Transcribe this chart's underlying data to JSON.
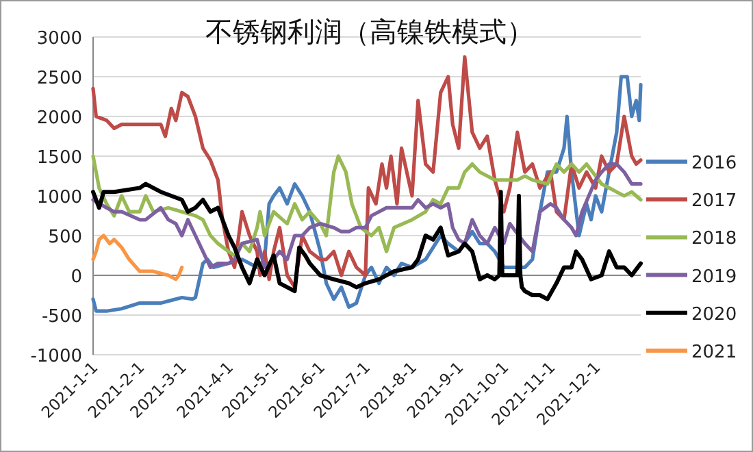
{
  "chart_data": {
    "type": "line",
    "title": "不锈钢利润（高镍铁模式）",
    "xlim": [
      "2021-01-01",
      "2021-12-31"
    ],
    "xticks": [
      {
        "value": "2021-01-01",
        "label": "2021-1-1"
      },
      {
        "value": "2021-02-01",
        "label": "2021-2-1"
      },
      {
        "value": "2021-03-01",
        "label": "2021-3-1"
      },
      {
        "value": "2021-04-01",
        "label": "2021-4-1"
      },
      {
        "value": "2021-05-01",
        "label": "2021-5-1"
      },
      {
        "value": "2021-06-01",
        "label": "2021-6-1"
      },
      {
        "value": "2021-07-01",
        "label": "2021-7-1"
      },
      {
        "value": "2021-08-01",
        "label": "2021-8-1"
      },
      {
        "value": "2021-09-01",
        "label": "2021-9-1"
      },
      {
        "value": "2021-10-01",
        "label": "2021-10-1"
      },
      {
        "value": "2021-11-01",
        "label": "2021-11-1"
      },
      {
        "value": "2021-12-01",
        "label": "2021-12-1"
      }
    ],
    "ylim": [
      -1000,
      3000
    ],
    "yticks": [
      -1000,
      -500,
      0,
      500,
      1000,
      1500,
      2000,
      2500,
      3000
    ],
    "grid": "y",
    "legend": "right",
    "marker": "none",
    "line_style": "solid",
    "series": [
      {
        "name": "2016",
        "color": "#4a7ebb",
        "x": [
          "2021-01-01",
          "2021-01-03",
          "2021-01-10",
          "2021-01-20",
          "2021-02-01",
          "2021-02-15",
          "2021-02-25",
          "2021-03-01",
          "2021-03-08",
          "2021-03-10",
          "2021-03-15",
          "2021-03-18",
          "2021-03-22",
          "2021-04-01",
          "2021-04-10",
          "2021-04-20",
          "2021-04-25",
          "2021-04-28",
          "2021-05-01",
          "2021-05-05",
          "2021-05-10",
          "2021-05-15",
          "2021-05-20",
          "2021-05-25",
          "2021-06-01",
          "2021-06-05",
          "2021-06-10",
          "2021-06-15",
          "2021-06-20",
          "2021-06-25",
          "2021-07-01",
          "2021-07-05",
          "2021-07-10",
          "2021-07-15",
          "2021-07-20",
          "2021-07-25",
          "2021-08-01",
          "2021-08-10",
          "2021-08-15",
          "2021-08-20",
          "2021-08-25",
          "2021-09-01",
          "2021-09-10",
          "2021-09-15",
          "2021-09-20",
          "2021-09-25",
          "2021-10-01",
          "2021-10-10",
          "2021-10-15",
          "2021-10-20",
          "2021-10-25",
          "2021-10-30",
          "2021-11-05",
          "2021-11-10",
          "2021-11-12",
          "2021-11-15",
          "2021-11-20",
          "2021-11-25",
          "2021-11-28",
          "2021-12-01",
          "2021-12-05",
          "2021-12-10",
          "2021-12-15",
          "2021-12-18",
          "2021-12-22",
          "2021-12-25",
          "2021-12-28",
          "2021-12-30",
          "2021-12-31"
        ],
        "values": [
          -300,
          -450,
          -450,
          -420,
          -350,
          -350,
          -300,
          -280,
          -300,
          -280,
          150,
          200,
          100,
          150,
          200,
          100,
          200,
          900,
          1000,
          1100,
          900,
          1150,
          1000,
          800,
          300,
          -100,
          -300,
          -150,
          -400,
          -350,
          0,
          100,
          -100,
          100,
          0,
          150,
          100,
          200,
          350,
          500,
          400,
          300,
          550,
          400,
          400,
          300,
          100,
          100,
          100,
          200,
          800,
          1300,
          1300,
          1600,
          2000,
          1300,
          500,
          900,
          700,
          1000,
          800,
          1300,
          1800,
          2500,
          2500,
          2000,
          2200,
          1950,
          2400
        ]
      },
      {
        "name": "2017",
        "color": "#be4b48",
        "x": [
          "2021-01-01",
          "2021-01-03",
          "2021-01-10",
          "2021-01-15",
          "2021-01-20",
          "2021-02-01",
          "2021-02-15",
          "2021-02-18",
          "2021-02-22",
          "2021-02-25",
          "2021-03-01",
          "2021-03-05",
          "2021-03-10",
          "2021-03-15",
          "2021-03-20",
          "2021-03-25",
          "2021-03-28",
          "2021-04-01",
          "2021-04-05",
          "2021-04-10",
          "2021-04-15",
          "2021-04-20",
          "2021-04-22",
          "2021-04-25",
          "2021-04-28",
          "2021-05-01",
          "2021-05-05",
          "2021-05-10",
          "2021-05-15",
          "2021-05-20",
          "2021-05-25",
          "2021-06-01",
          "2021-06-05",
          "2021-06-10",
          "2021-06-15",
          "2021-06-20",
          "2021-06-25",
          "2021-07-01",
          "2021-07-03",
          "2021-07-08",
          "2021-07-12",
          "2021-07-15",
          "2021-07-18",
          "2021-07-22",
          "2021-07-25",
          "2021-08-01",
          "2021-08-05",
          "2021-08-10",
          "2021-08-15",
          "2021-08-20",
          "2021-08-25",
          "2021-08-28",
          "2021-09-01",
          "2021-09-05",
          "2021-09-10",
          "2021-09-15",
          "2021-09-20",
          "2021-09-25",
          "2021-10-01",
          "2021-10-05",
          "2021-10-10",
          "2021-10-15",
          "2021-10-20",
          "2021-10-25",
          "2021-11-01",
          "2021-11-05",
          "2021-11-10",
          "2021-11-15",
          "2021-11-20",
          "2021-11-25",
          "2021-12-01",
          "2021-12-05",
          "2021-12-10",
          "2021-12-15",
          "2021-12-20",
          "2021-12-25",
          "2021-12-28",
          "2021-12-31"
        ],
        "values": [
          2350,
          2000,
          1950,
          1850,
          1900,
          1900,
          1900,
          1750,
          2100,
          1950,
          2300,
          2250,
          2000,
          1600,
          1450,
          1200,
          700,
          300,
          100,
          800,
          500,
          300,
          0,
          300,
          -50,
          300,
          600,
          0,
          -150,
          500,
          300,
          200,
          200,
          300,
          0,
          300,
          100,
          0,
          1100,
          900,
          1400,
          1100,
          1500,
          900,
          1600,
          1000,
          2200,
          1400,
          1300,
          2300,
          2500,
          1900,
          1600,
          2750,
          1800,
          1600,
          1750,
          1200,
          800,
          1100,
          1800,
          1300,
          1400,
          1100,
          1300,
          800,
          700,
          1400,
          1100,
          1300,
          1100,
          1500,
          1300,
          1400,
          2000,
          1500,
          1400,
          1450
        ]
      },
      {
        "name": "2018",
        "color": "#98b954",
        "x": [
          "2021-01-01",
          "2021-01-05",
          "2021-01-10",
          "2021-01-15",
          "2021-01-20",
          "2021-01-25",
          "2021-02-01",
          "2021-02-05",
          "2021-02-10",
          "2021-02-20",
          "2021-03-01",
          "2021-03-10",
          "2021-03-15",
          "2021-03-20",
          "2021-03-25",
          "2021-04-01",
          "2021-04-05",
          "2021-04-10",
          "2021-04-15",
          "2021-04-20",
          "2021-04-22",
          "2021-04-25",
          "2021-05-01",
          "2021-05-10",
          "2021-05-15",
          "2021-05-20",
          "2021-05-25",
          "2021-06-01",
          "2021-06-05",
          "2021-06-10",
          "2021-06-13",
          "2021-06-18",
          "2021-06-22",
          "2021-06-28",
          "2021-07-05",
          "2021-07-10",
          "2021-07-15",
          "2021-07-20",
          "2021-08-01",
          "2021-08-10",
          "2021-08-15",
          "2021-08-20",
          "2021-08-25",
          "2021-09-01",
          "2021-09-05",
          "2021-09-10",
          "2021-09-15",
          "2021-09-25",
          "2021-10-01",
          "2021-10-10",
          "2021-10-15",
          "2021-10-20",
          "2021-10-30",
          "2021-11-05",
          "2021-11-10",
          "2021-11-15",
          "2021-11-20",
          "2021-11-25",
          "2021-12-01",
          "2021-12-05",
          "2021-12-10",
          "2021-12-15",
          "2021-12-20",
          "2021-12-25",
          "2021-12-31"
        ],
        "values": [
          1500,
          1100,
          900,
          750,
          1000,
          800,
          800,
          1000,
          800,
          850,
          800,
          750,
          700,
          500,
          400,
          300,
          250,
          400,
          300,
          600,
          800,
          500,
          800,
          650,
          900,
          700,
          800,
          650,
          500,
          1300,
          1500,
          1300,
          900,
          600,
          500,
          600,
          300,
          600,
          700,
          800,
          950,
          900,
          1100,
          1100,
          1300,
          1400,
          1300,
          1200,
          1200,
          1200,
          1250,
          1200,
          1150,
          1400,
          1300,
          1400,
          1300,
          1400,
          1250,
          1150,
          1100,
          1050,
          1000,
          1050,
          950
        ]
      },
      {
        "name": "2019",
        "color": "#7d60a0",
        "x": [
          "2021-01-01",
          "2021-01-10",
          "2021-01-15",
          "2021-01-20",
          "2021-02-01",
          "2021-02-05",
          "2021-02-15",
          "2021-02-20",
          "2021-02-25",
          "2021-03-01",
          "2021-03-05",
          "2021-03-10",
          "2021-03-15",
          "2021-03-20",
          "2021-03-25",
          "2021-04-01",
          "2021-04-05",
          "2021-04-10",
          "2021-04-20",
          "2021-04-25",
          "2021-05-01",
          "2021-05-05",
          "2021-05-10",
          "2021-05-15",
          "2021-05-20",
          "2021-05-25",
          "2021-06-01",
          "2021-06-10",
          "2021-06-15",
          "2021-06-20",
          "2021-06-25",
          "2021-07-01",
          "2021-07-05",
          "2021-07-10",
          "2021-07-15",
          "2021-07-20",
          "2021-08-01",
          "2021-08-05",
          "2021-08-10",
          "2021-08-15",
          "2021-08-20",
          "2021-08-25",
          "2021-08-28",
          "2021-09-01",
          "2021-09-05",
          "2021-09-10",
          "2021-09-15",
          "2021-09-20",
          "2021-09-25",
          "2021-10-01",
          "2021-10-05",
          "2021-10-15",
          "2021-10-20",
          "2021-10-25",
          "2021-11-01",
          "2021-11-05",
          "2021-11-10",
          "2021-11-15",
          "2021-11-18",
          "2021-11-22",
          "2021-12-01",
          "2021-12-05",
          "2021-12-10",
          "2021-12-15",
          "2021-12-20",
          "2021-12-25",
          "2021-12-31"
        ],
        "values": [
          950,
          850,
          800,
          800,
          700,
          700,
          850,
          700,
          650,
          500,
          700,
          500,
          300,
          100,
          150,
          150,
          200,
          400,
          450,
          100,
          200,
          300,
          200,
          500,
          500,
          600,
          650,
          600,
          550,
          550,
          600,
          600,
          750,
          800,
          850,
          850,
          850,
          950,
          850,
          900,
          850,
          900,
          600,
          450,
          400,
          700,
          500,
          400,
          600,
          400,
          650,
          400,
          300,
          800,
          900,
          850,
          700,
          600,
          500,
          800,
          1200,
          1300,
          1400,
          1400,
          1300,
          1150,
          1150
        ]
      },
      {
        "name": "2020",
        "color": "#000000",
        "x": [
          "2021-01-01",
          "2021-01-05",
          "2021-01-08",
          "2021-01-15",
          "2021-02-01",
          "2021-02-05",
          "2021-02-10",
          "2021-02-15",
          "2021-03-01",
          "2021-03-05",
          "2021-03-10",
          "2021-03-15",
          "2021-03-20",
          "2021-03-25",
          "2021-04-01",
          "2021-04-05",
          "2021-04-10",
          "2021-04-15",
          "2021-04-20",
          "2021-04-25",
          "2021-05-01",
          "2021-05-05",
          "2021-05-10",
          "2021-05-15",
          "2021-05-18",
          "2021-05-22",
          "2021-05-25",
          "2021-06-01",
          "2021-06-10",
          "2021-06-20",
          "2021-06-25",
          "2021-07-01",
          "2021-07-10",
          "2021-07-20",
          "2021-08-01",
          "2021-08-05",
          "2021-08-10",
          "2021-08-15",
          "2021-08-20",
          "2021-08-25",
          "2021-09-01",
          "2021-09-05",
          "2021-09-10",
          "2021-09-15",
          "2021-09-20",
          "2021-09-25",
          "2021-09-28",
          "2021-09-29",
          "2021-09-30",
          "2021-10-10",
          "2021-10-11",
          "2021-10-12",
          "2021-10-13",
          "2021-10-15",
          "2021-10-20",
          "2021-10-25",
          "2021-10-30",
          "2021-11-05",
          "2021-11-10",
          "2021-11-15",
          "2021-11-18",
          "2021-11-22",
          "2021-11-28",
          "2021-12-05",
          "2021-12-10",
          "2021-12-15",
          "2021-12-20",
          "2021-12-25",
          "2021-12-31"
        ],
        "values": [
          1050,
          850,
          1050,
          1050,
          1100,
          1150,
          1100,
          1050,
          950,
          800,
          850,
          950,
          800,
          850,
          500,
          350,
          100,
          -100,
          200,
          0,
          250,
          -100,
          -150,
          -200,
          350,
          250,
          150,
          0,
          -50,
          -100,
          -150,
          -100,
          -50,
          50,
          100,
          200,
          500,
          450,
          600,
          250,
          300,
          400,
          300,
          -50,
          0,
          -50,
          0,
          1050,
          0,
          0,
          1000,
          0,
          -150,
          -200,
          -250,
          -250,
          -300,
          -100,
          100,
          100,
          300,
          200,
          -50,
          0,
          300,
          100,
          100,
          0,
          150
        ]
      },
      {
        "name": "2021",
        "color": "#f79646",
        "x": [
          "2021-01-01",
          "2021-01-03",
          "2021-01-05",
          "2021-01-08",
          "2021-01-12",
          "2021-01-15",
          "2021-01-20",
          "2021-01-25",
          "2021-02-01",
          "2021-02-10",
          "2021-02-20",
          "2021-02-25",
          "2021-02-27",
          "2021-03-01"
        ],
        "values": [
          200,
          300,
          450,
          500,
          400,
          450,
          350,
          200,
          50,
          50,
          0,
          -50,
          0,
          100
        ]
      }
    ]
  }
}
